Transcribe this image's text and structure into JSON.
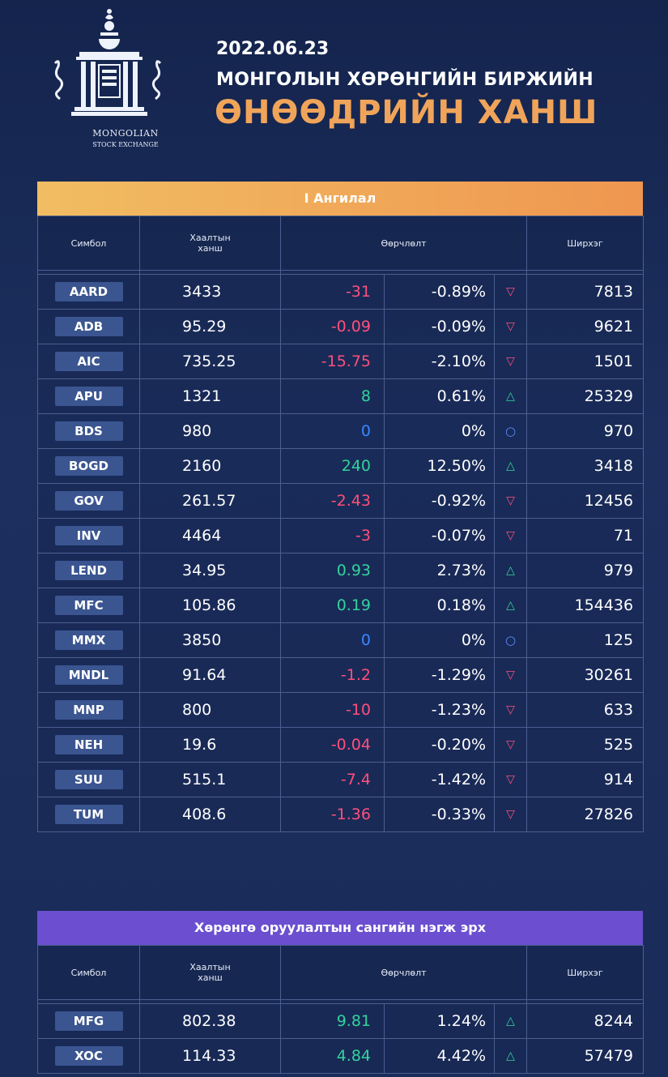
{
  "header": {
    "date": "2022.06.23",
    "subtitle": "МОНГОЛЫН ХӨРӨНГИЙН БИРЖИЙН",
    "title": "ӨНӨӨДРИЙН ХАНШ",
    "logo_line1": "MONGOLIAN",
    "logo_line2": "STOCK EXCHANGE"
  },
  "colors": {
    "negative": "#ff4f7a",
    "positive": "#33d39a",
    "zero": "#3a86ff",
    "accent": "#f0a45a"
  },
  "columns": {
    "symbol": "Симбол",
    "close": "Хаалтын ханш",
    "change": "Өөрчлөлт",
    "volume": "Ширхэг"
  },
  "tier1": {
    "title": "I Ангилал",
    "rows": [
      {
        "sym": "AARD",
        "price": "3433",
        "chg": "-31",
        "pct": "-0.89%",
        "dir": "down",
        "vol": "7813"
      },
      {
        "sym": "ADB",
        "price": "95.29",
        "chg": "-0.09",
        "pct": "-0.09%",
        "dir": "down",
        "vol": "9621"
      },
      {
        "sym": "AIC",
        "price": "735.25",
        "chg": "-15.75",
        "pct": "-2.10%",
        "dir": "down",
        "vol": "1501"
      },
      {
        "sym": "APU",
        "price": "1321",
        "chg": "8",
        "pct": "0.61%",
        "dir": "up",
        "vol": "25329"
      },
      {
        "sym": "BDS",
        "price": "980",
        "chg": "0",
        "pct": "0%",
        "dir": "zero",
        "vol": "970"
      },
      {
        "sym": "BOGD",
        "price": "2160",
        "chg": "240",
        "pct": "12.50%",
        "dir": "up",
        "vol": "3418"
      },
      {
        "sym": "GOV",
        "price": "261.57",
        "chg": "-2.43",
        "pct": "-0.92%",
        "dir": "down",
        "vol": "12456"
      },
      {
        "sym": "INV",
        "price": "4464",
        "chg": "-3",
        "pct": "-0.07%",
        "dir": "down",
        "vol": "71"
      },
      {
        "sym": "LEND",
        "price": "34.95",
        "chg": "0.93",
        "pct": "2.73%",
        "dir": "up",
        "vol": "979"
      },
      {
        "sym": "MFC",
        "price": "105.86",
        "chg": "0.19",
        "pct": "0.18%",
        "dir": "up",
        "vol": "154436"
      },
      {
        "sym": "MMX",
        "price": "3850",
        "chg": "0",
        "pct": "0%",
        "dir": "zero",
        "vol": "125"
      },
      {
        "sym": "MNDL",
        "price": "91.64",
        "chg": "-1.2",
        "pct": "-1.29%",
        "dir": "down",
        "vol": "30261"
      },
      {
        "sym": "MNP",
        "price": "800",
        "chg": "-10",
        "pct": "-1.23%",
        "dir": "down",
        "vol": "633"
      },
      {
        "sym": "NEH",
        "price": "19.6",
        "chg": "-0.04",
        "pct": "-0.20%",
        "dir": "down",
        "vol": "525"
      },
      {
        "sym": "SUU",
        "price": "515.1",
        "chg": "-7.4",
        "pct": "-1.42%",
        "dir": "down",
        "vol": "914"
      },
      {
        "sym": "TUM",
        "price": "408.6",
        "chg": "-1.36",
        "pct": "-0.33%",
        "dir": "down",
        "vol": "27826"
      }
    ]
  },
  "funds": {
    "title": "Хөрөнгө оруулалтын сангийн нэгж эрх",
    "rows": [
      {
        "sym": "MFG",
        "price": "802.38",
        "chg": "9.81",
        "pct": "1.24%",
        "dir": "up",
        "vol": "8244"
      },
      {
        "sym": "XOC",
        "price": "114.33",
        "chg": "4.84",
        "pct": "4.42%",
        "dir": "up",
        "vol": "57479"
      }
    ]
  }
}
